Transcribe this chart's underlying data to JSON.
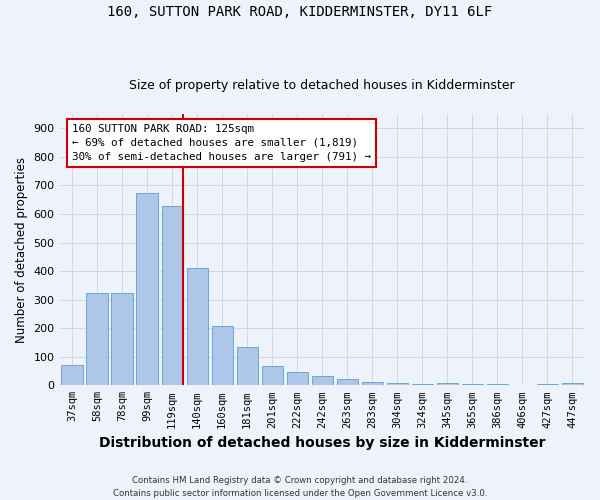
{
  "title1": "160, SUTTON PARK ROAD, KIDDERMINSTER, DY11 6LF",
  "title2": "Size of property relative to detached houses in Kidderminster",
  "xlabel": "Distribution of detached houses by size in Kidderminster",
  "ylabel": "Number of detached properties",
  "categories": [
    "37sqm",
    "58sqm",
    "78sqm",
    "99sqm",
    "119sqm",
    "140sqm",
    "160sqm",
    "181sqm",
    "201sqm",
    "222sqm",
    "242sqm",
    "263sqm",
    "283sqm",
    "304sqm",
    "324sqm",
    "345sqm",
    "365sqm",
    "386sqm",
    "406sqm",
    "427sqm",
    "447sqm"
  ],
  "values": [
    70,
    322,
    322,
    675,
    628,
    410,
    207,
    135,
    68,
    47,
    33,
    22,
    10,
    8,
    5,
    8,
    5,
    5,
    2,
    5,
    8
  ],
  "bar_color": "#aec6e8",
  "bar_edge_color": "#5a9fd4",
  "grid_color": "#d0d8e8",
  "vline_color": "#cc0000",
  "annotation_text": "160 SUTTON PARK ROAD: 125sqm\n← 69% of detached houses are smaller (1,819)\n30% of semi-detached houses are larger (791) →",
  "annotation_box_color": "#ffffff",
  "annotation_box_edge": "#cc0000",
  "ylim": [
    0,
    950
  ],
  "yticks": [
    0,
    100,
    200,
    300,
    400,
    500,
    600,
    700,
    800,
    900
  ],
  "footer": "Contains HM Land Registry data © Crown copyright and database right 2024.\nContains public sector information licensed under the Open Government Licence v3.0.",
  "bg_color": "#eef2fa",
  "title1_fontsize": 10,
  "title2_fontsize": 9,
  "xlabel_fontsize": 10,
  "ylabel_fontsize": 8.5
}
